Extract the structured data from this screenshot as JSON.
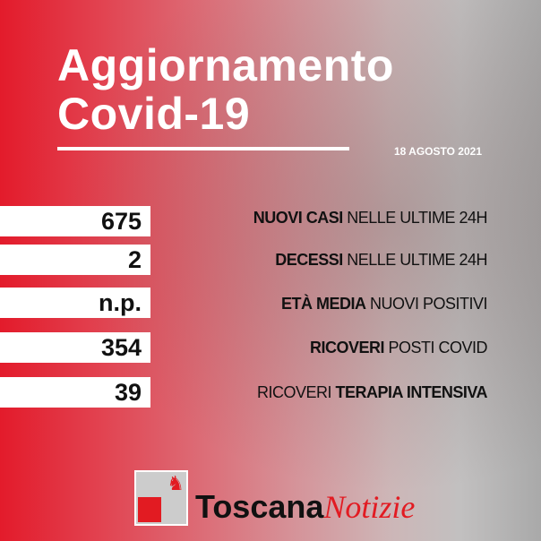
{
  "header": {
    "title_line1": "Aggiornamento",
    "title_line2": "Covid-19",
    "date": "18 AGOSTO 2021"
  },
  "stats": [
    {
      "value": "675",
      "label_bold": "NUOVI CASI",
      "label_regular": "NELLE ULTIME 24H",
      "bold_first": true
    },
    {
      "value": "2",
      "label_bold": "DECESSI",
      "label_regular": "NELLE ULTIME 24H",
      "bold_first": true
    },
    {
      "value": "n.p.",
      "label_bold": "ETÀ MEDIA",
      "label_regular": "NUOVI POSITIVI",
      "bold_first": true
    },
    {
      "value": "354",
      "label_bold": "RICOVERI",
      "label_regular": "POSTI COVID",
      "bold_first": true
    },
    {
      "value": "39",
      "label_regular": "RICOVERI",
      "label_bold": "TERAPIA INTENSIVA",
      "bold_first": false
    }
  ],
  "logo": {
    "brand_bold": "Toscana",
    "brand_italic": "Notizie",
    "icon": "pegasus-icon"
  },
  "colors": {
    "accent": "#e31b2b",
    "text": "#111111"
  }
}
